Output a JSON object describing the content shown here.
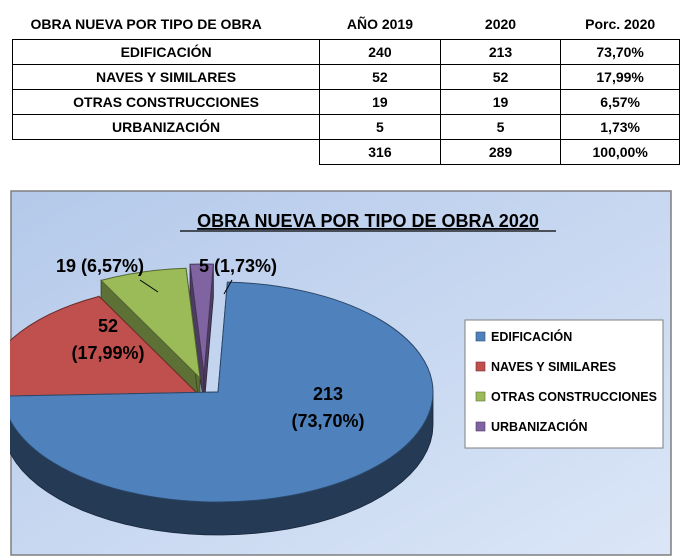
{
  "table": {
    "headers": [
      "OBRA NUEVA POR TIPO DE OBRA",
      "AÑO 2019",
      "2020",
      "Porc. 2020"
    ],
    "rows": [
      [
        "EDIFICACIÓN",
        "240",
        "213",
        "73,70%"
      ],
      [
        "NAVES Y SIMILARES",
        "52",
        "52",
        "17,99%"
      ],
      [
        "OTRAS CONSTRUCCIONES",
        "19",
        "19",
        "6,57%"
      ],
      [
        "URBANIZACIÓN",
        "5",
        "5",
        "1,73%"
      ]
    ],
    "total": [
      "",
      "316",
      "289",
      "100,00%"
    ]
  },
  "chart_data": {
    "type": "pie",
    "title": "OBRA NUEVA POR TIPO DE OBRA 2020",
    "categories": [
      "EDIFICACIÓN",
      "NAVES Y SIMILARES",
      "OTRAS CONSTRUCCIONES",
      "URBANIZACIÓN"
    ],
    "values": [
      213,
      52,
      19,
      5
    ],
    "data_labels": [
      [
        "213",
        "(73,70%)"
      ],
      [
        "52",
        "(17,99%)"
      ],
      [
        "19 (6,57%)"
      ],
      [
        "5 (1,73%)"
      ]
    ],
    "colors": [
      "#4f81bd",
      "#c0504d",
      "#9bbb59",
      "#8064a2"
    ],
    "legend_position": "right",
    "exploded": true,
    "style": "3d"
  }
}
